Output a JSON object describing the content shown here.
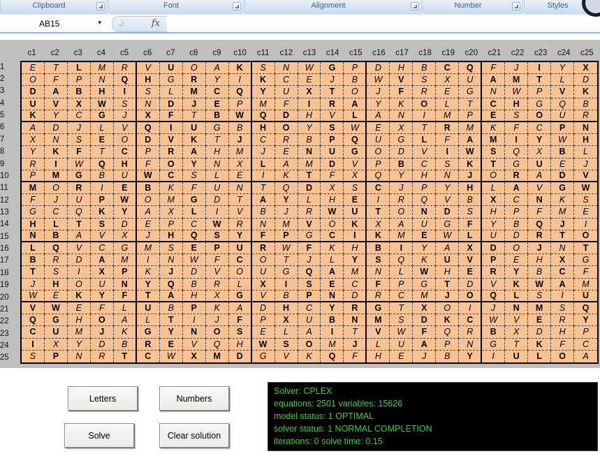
{
  "ribbon": {
    "groups": [
      "Clipboard",
      "Font",
      "Alignment",
      "Number",
      "Styles"
    ]
  },
  "formula_bar": {
    "name_box": "AB15",
    "fx_label": "fx",
    "formula_value": ""
  },
  "sheet": {
    "col_headers": [
      "c1",
      "c2",
      "c3",
      "c4",
      "c5",
      "c6",
      "c7",
      "c8",
      "c9",
      "c10",
      "c11",
      "c12",
      "c13",
      "c14",
      "c15",
      "c16",
      "c17",
      "c18",
      "c19",
      "c20",
      "c21",
      "c22",
      "c23",
      "c24",
      "c25"
    ],
    "row_headers": [
      "r1",
      "r2",
      "r3",
      "r4",
      "r5",
      "r6",
      "r7",
      "r8",
      "r9",
      "r10",
      "r11",
      "r12",
      "r13",
      "r14",
      "r15",
      "r16",
      "r17",
      "r18",
      "r19",
      "r20",
      "r21",
      "r22",
      "r23",
      "r24",
      "r25"
    ],
    "letters": [
      "ETLMRVUOAKSNWGPDHBCQFJIYX",
      "OFPNQHGRYIKCEJBWVSXUAMTLD",
      "DABHISLMCQYUXTOJFREGNWPVK",
      "UVXWSNDJEPMFIRAYKOLTCHGQB",
      "KYCGJXFTBWQDHVLANIMPESOUR",
      "ADJLVQIUGBHOYSWEXTRMKFCPN",
      "XNSEODVKTJCRBPQUGLFAMIYWH",
      "YKFTCPRAHMJENUGODVIWSQXBL",
      "RIWQHFOYNXLAMDVPBCSKTGUEJ",
      "PMGBUWCSLEIKTFXQYHNJORADV",
      "MORIEBKFUNTQDXSCJPYHLAVGW",
      "FJUPWOMGDTAYLHEIRQVBXCNKS",
      "GCQKYAXLIVBJRWUTONDSHPFME",
      "HLTSDEPCWRNMVOKXAUGFYBQJI",
      "NBAVXJHQSYFPGCIKMEWLUDRTO",
      "LQVCGMSEPURWFKHBIYAXDOJNT",
      "BRDAMINWFCOTJLYSQKUVPEHXG",
      "TSIXPKJDVOUGQAMNLWHERYBCF",
      "JHOUNYQBRLXISECFPGTDVKWAM",
      "WEKYFTAHXGVBPNDRCMJOQLSIU",
      "VWEFLUBPKADHCYRGTXOIJNMSQ",
      "QGHOALTIJFPXUBNMSDKCWVERY",
      "CUMJKGYNOSELAITVWFQRBXDHP",
      "IXYDBREVQHWSOMJLUAPNGTKFC",
      "SPNRTCWXMDGVKQFHEJBYIULOA"
    ],
    "styles": [
      "iibiiibiibiiibiiiibbiibib",
      "iiiibbibiibiiiiibiiibbbii",
      "bbbbbiibbbbibbiibiiiiiibb",
      "bbbbiibbbiiibbbiibiibbiii",
      "biibibbibbbbiibiiiiibibii",
      "iiiiibbbiibbibiiiibiiiibb",
      "iiibibbbibiiibbiibibbbbib",
      "ibbibibbiiiibbbiiibbbiibi",
      "ibibbibbiibiibiibiibbibii",
      "ibbiibbiiiiibiiiiiibibibb",
      "bibibbiiiiiibiibiiibibibb",
      "iiibbiibiibbiibiiiiibibii",
      "iiibbiibiiiiibbbibbiiiiii",
      "bbbbiiiibiiibibiiiibiibbi",
      "bbiiiibbbbbbibbbibibiibbb",
      "bbiiiiibbbbibiibbiibbibib",
      "biibiiiiibiiiibbiibbbiibi",
      "biibbibiiiiibbiiibibbbibi",
      "ibiibbbiiibbbbibiibiibbbi",
      "iibbbbbiibiibbiiiibbbbiib",
      "bbiiibibiiibibbbibiiibbib",
      "bbibiibiibibibbbibbbiibib",
      "bbibibbbbbiiibibibiibiiii",
      "biiiibbiiibbbibiibiiiibii",
      "ibiibbibbbiiibiiiiibibbbi"
    ]
  },
  "controls": {
    "letters_label": "Letters",
    "numbers_label": "Numbers",
    "solve_label": "Solve",
    "clear_label": "Clear solution"
  },
  "console": {
    "lines": [
      "Solver: CPLEX",
      "equations: 2501 variables: 15626",
      "model status: 1 OPTIMAL",
      "solver status: 1 NORMAL COMPLETION",
      "iterations: 0 solve time: 0.15"
    ]
  },
  "colors": {
    "cell_background": "#F9C294",
    "sheet_gray": "#BFBFBF",
    "console_background": "#000000",
    "console_text": "#33D633",
    "ribbon_label_text": "#3E5C8F",
    "ribbon_divider_blue": "#8DB2E3",
    "grid_border": "#000000"
  }
}
